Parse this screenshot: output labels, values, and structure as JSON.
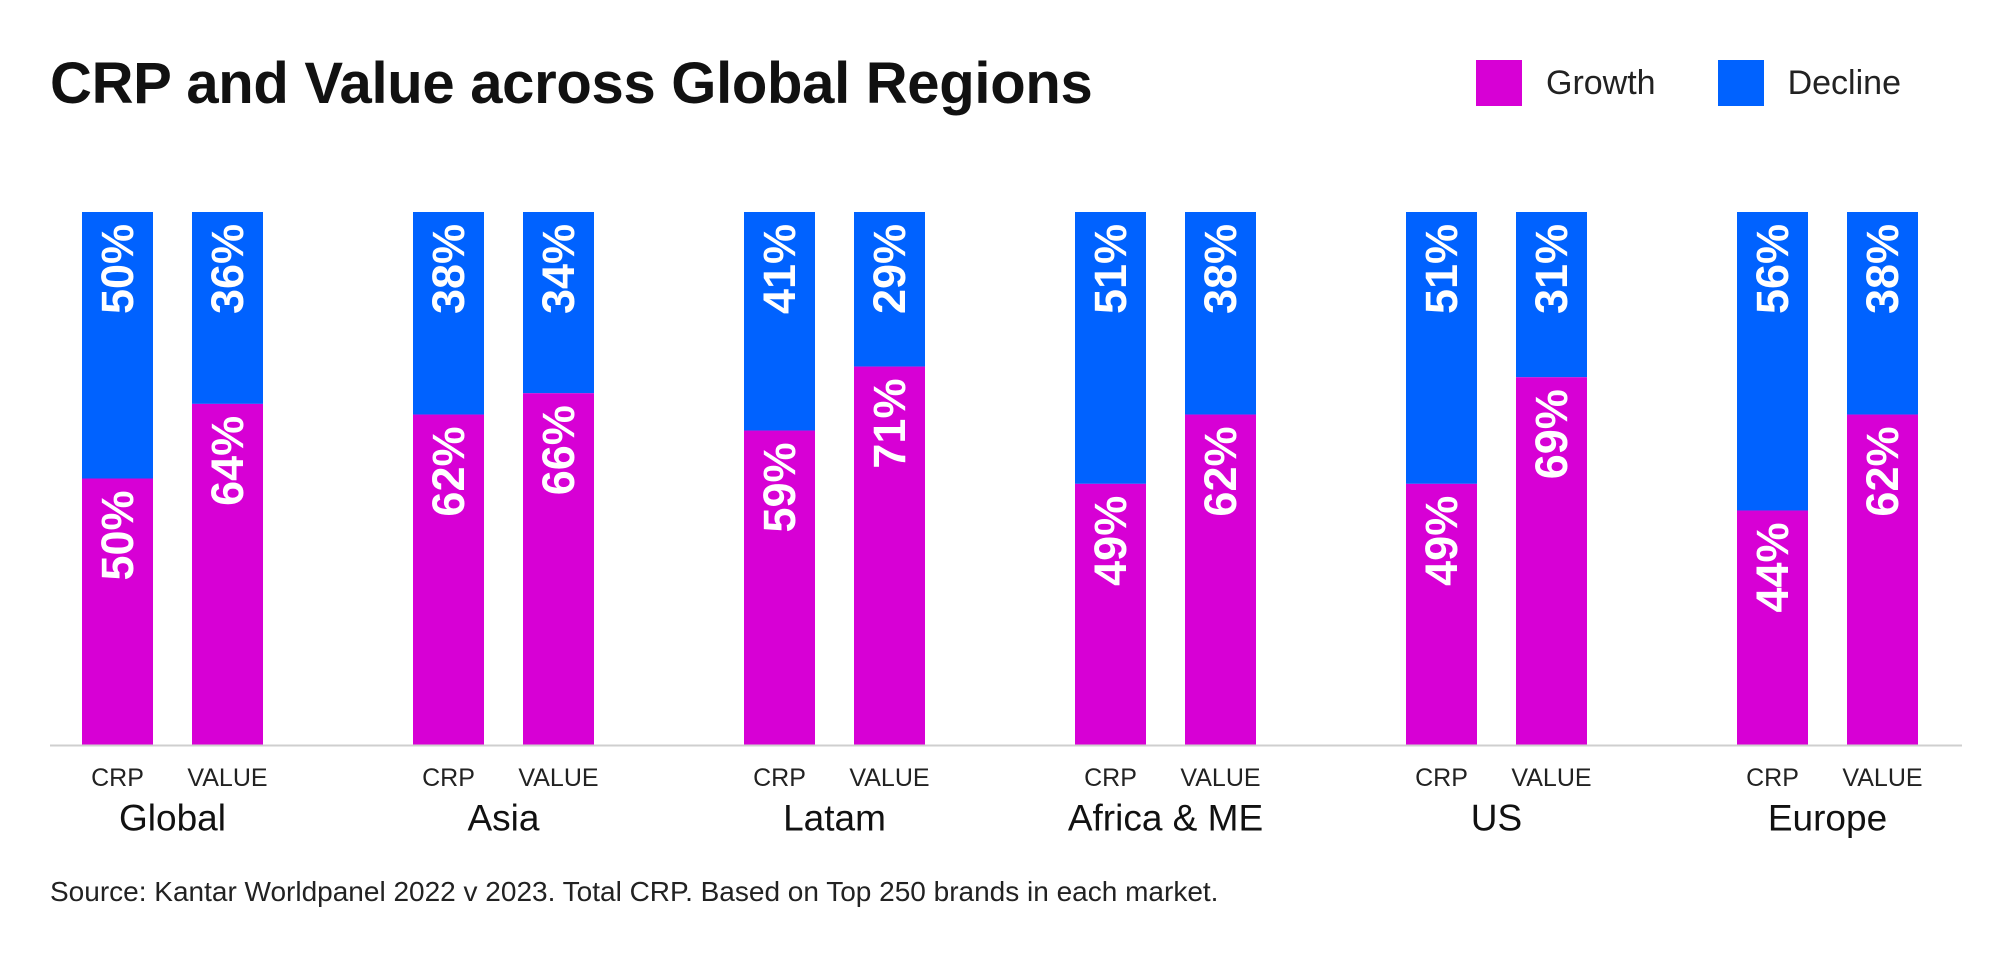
{
  "title": "CRP and Value across Global Regions",
  "legend": [
    {
      "label": "Growth",
      "color": "#D700D5"
    },
    {
      "label": "Decline",
      "color": "#0062FF"
    }
  ],
  "source": "Source: Kantar Worldpanel 2022 v 2023. Total CRP. Based on Top 250 brands in each market.",
  "chart_data": {
    "type": "bar",
    "stacked": true,
    "orientation": "vertical",
    "groups": [
      "Global",
      "Asia",
      "Latam",
      "Africa & ME",
      "US",
      "Europe"
    ],
    "sub_categories": [
      "CRP",
      "VALUE"
    ],
    "series": [
      {
        "name": "Growth",
        "color": "#D700D5",
        "values": [
          [
            50,
            64
          ],
          [
            62,
            66
          ],
          [
            59,
            71
          ],
          [
            49,
            62
          ],
          [
            49,
            69
          ],
          [
            44,
            62
          ]
        ]
      },
      {
        "name": "Decline",
        "color": "#0062FF",
        "values": [
          [
            50,
            36
          ],
          [
            38,
            34
          ],
          [
            41,
            29
          ],
          [
            51,
            38
          ],
          [
            51,
            31
          ],
          [
            56,
            38
          ]
        ]
      }
    ],
    "data_labels": {
      "Growth": [
        [
          "50%",
          "64%"
        ],
        [
          "62%",
          "66%"
        ],
        [
          "59%",
          "71%"
        ],
        [
          "49%",
          "62%"
        ],
        [
          "49%",
          "69%"
        ],
        [
          "44%",
          "62%"
        ]
      ],
      "Decline": [
        [
          "50%",
          "36%"
        ],
        [
          "38%",
          "34%"
        ],
        [
          "41%",
          "29%"
        ],
        [
          "51%",
          "38%"
        ],
        [
          "51%",
          "31%"
        ],
        [
          "56%",
          "38%"
        ]
      ]
    },
    "ylim": [
      0,
      100
    ],
    "grid": false,
    "legend_position": "top-right"
  }
}
